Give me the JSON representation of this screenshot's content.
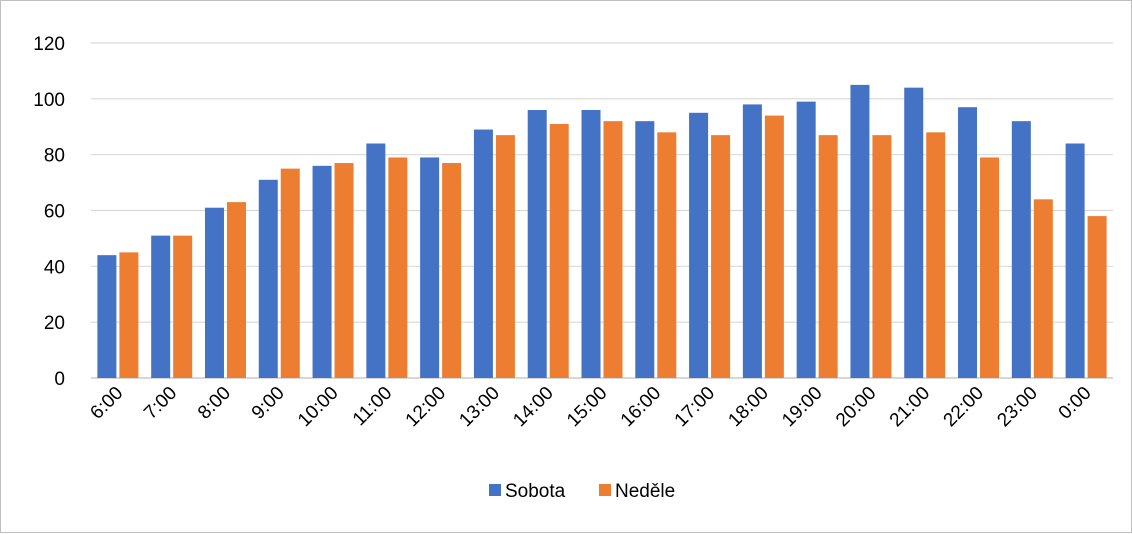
{
  "chart_data": {
    "type": "bar",
    "title": "",
    "xlabel": "",
    "ylabel": "",
    "ylim": [
      0,
      120
    ],
    "yticks": [
      0,
      20,
      40,
      60,
      80,
      100,
      120
    ],
    "grid": true,
    "legend_position": "bottom",
    "categories": [
      "6:00",
      "7:00",
      "8:00",
      "9:00",
      "10:00",
      "11:00",
      "12:00",
      "13:00",
      "14:00",
      "15:00",
      "16:00",
      "17:00",
      "18:00",
      "19:00",
      "20:00",
      "21:00",
      "22:00",
      "23:00",
      "0:00"
    ],
    "series": [
      {
        "name": "Sobota",
        "color": "#4472C4",
        "values": [
          44,
          51,
          61,
          71,
          76,
          84,
          79,
          89,
          96,
          96,
          92,
          95,
          98,
          99,
          105,
          104,
          97,
          92,
          84
        ]
      },
      {
        "name": "Neděle",
        "color": "#ED7D31",
        "values": [
          45,
          51,
          63,
          75,
          77,
          79,
          77,
          87,
          91,
          92,
          88,
          87,
          94,
          87,
          87,
          88,
          79,
          64,
          58
        ]
      }
    ]
  }
}
